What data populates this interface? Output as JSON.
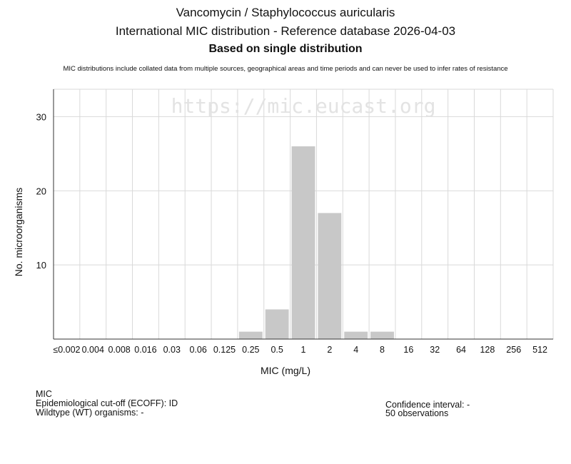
{
  "header": {
    "title": "Vancomycin / Staphylococcus auricularis",
    "subtitle": "International MIC distribution - Reference database 2026-04-03",
    "basis": "Based on single distribution",
    "disclaimer": "MIC distributions include collated data from multiple sources, geographical areas and time periods and can never be used to infer rates of resistance"
  },
  "watermark": "https://mic.eucast.org",
  "chart_data": {
    "type": "bar",
    "xlabel": "MIC (mg/L)",
    "ylabel": "No. microorganisms",
    "categories": [
      "≤0.002",
      "0.004",
      "0.008",
      "0.016",
      "0.03",
      "0.06",
      "0.125",
      "0.25",
      "0.5",
      "1",
      "2",
      "4",
      "8",
      "16",
      "32",
      "64",
      "128",
      "256",
      "512"
    ],
    "values": [
      0,
      0,
      0,
      0,
      0,
      0,
      0,
      1,
      4,
      26,
      17,
      1,
      1,
      0,
      0,
      0,
      0,
      0,
      0
    ],
    "yticks": [
      10,
      20,
      30
    ],
    "ylim": [
      0,
      33.7
    ],
    "grid": true,
    "bar_color": "#c8c8c8"
  },
  "footer": {
    "mic_label": "MIC",
    "ecoff": "Epidemiological cut-off (ECOFF): ID",
    "wildtype": "Wildtype (WT) organisms:  -",
    "confidence": "Confidence interval: -",
    "observations": "50 observations"
  }
}
